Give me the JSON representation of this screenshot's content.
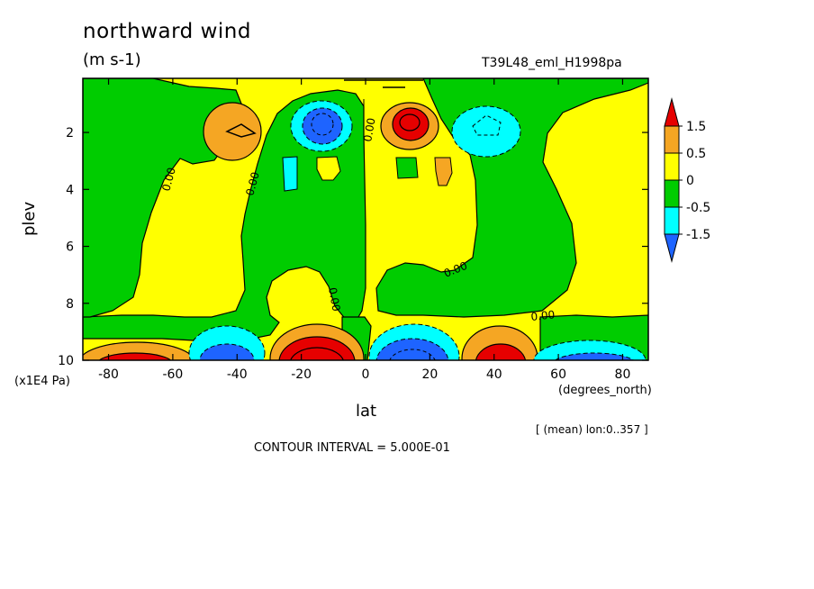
{
  "chart_data": {
    "type": "contour",
    "title": "northward wind",
    "units": "(m s-1)",
    "dataset": "T39L48_eml_H1998pa",
    "xlabel": "lat",
    "xunit": "(degrees_north)",
    "ylabel": "plev",
    "yunit": "(x1E4 Pa)",
    "xlim": [
      -88,
      88
    ],
    "ylim": [
      0.1,
      10
    ],
    "x_ticks": [
      "-80",
      "-60",
      "-40",
      "-20",
      "0",
      "20",
      "40",
      "60",
      "80"
    ],
    "y_ticks": [
      "2",
      "4",
      "6",
      "8",
      "10"
    ],
    "zero_label": "0.00",
    "colorbar": {
      "labels": [
        "1.5",
        "0.5",
        "0",
        "-0.5",
        "-1.5"
      ],
      "colors": [
        "#e60000",
        "#f5a623",
        "#ffff00",
        "#00cc00",
        "#00ffff",
        "#1e64ff"
      ]
    },
    "features": [
      {
        "sign": "positive",
        "lat": -40,
        "plev": 2.0,
        "peak": 1.0
      },
      {
        "sign": "negative",
        "lat": -12,
        "plev": 1.7,
        "peak": -1.5
      },
      {
        "sign": "positive",
        "lat": 14,
        "plev": 1.6,
        "peak": 1.7
      },
      {
        "sign": "negative",
        "lat": 40,
        "plev": 1.8,
        "peak": -0.9
      },
      {
        "sign": "positive",
        "lat": -70,
        "plev": 9.9,
        "peak": 1.0
      },
      {
        "sign": "negative",
        "lat": -42,
        "plev": 9.8,
        "peak": -1.5
      },
      {
        "sign": "positive",
        "lat": -15,
        "plev": 9.8,
        "peak": 2.0
      },
      {
        "sign": "negative",
        "lat": 12,
        "plev": 9.7,
        "peak": -2.0
      },
      {
        "sign": "positive",
        "lat": 42,
        "plev": 9.8,
        "peak": 1.7
      },
      {
        "sign": "negative",
        "lat": 72,
        "plev": 9.9,
        "peak": -1.3
      }
    ],
    "contour_interval": "CONTOUR INTERVAL = 5.000E-01",
    "averaging": "[ (mean) lon:0..357 ]"
  }
}
